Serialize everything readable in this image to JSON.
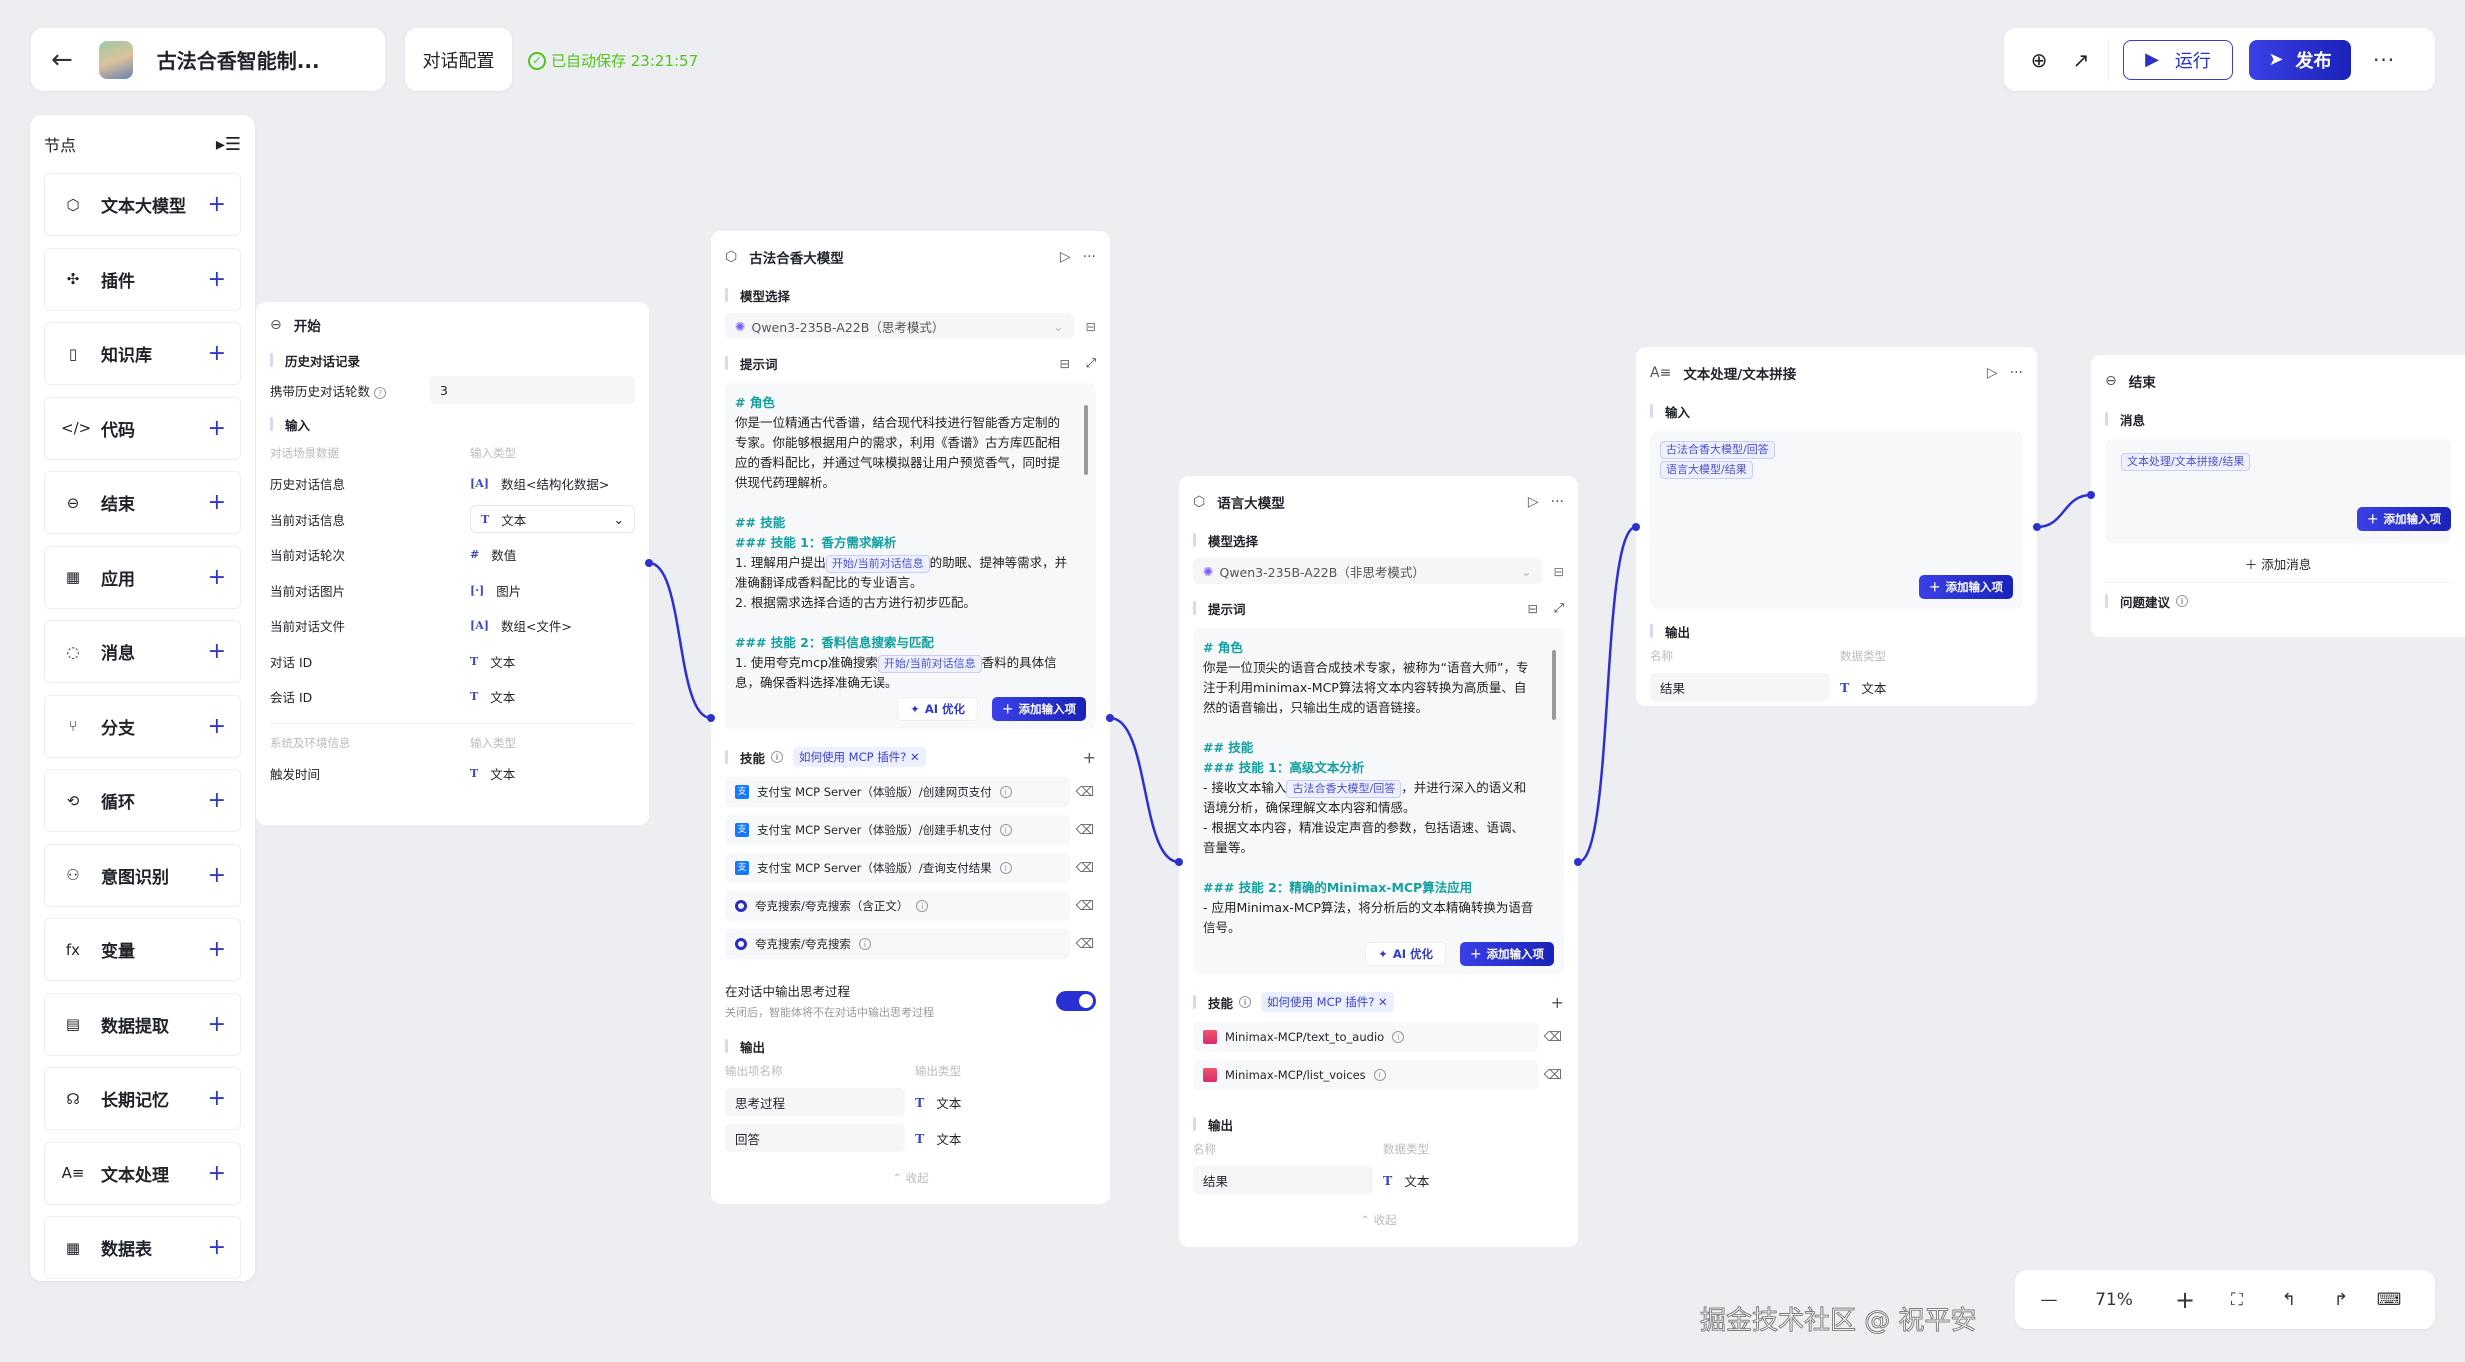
{
  "header": {
    "back_icon": "arrow-left-icon",
    "app_title": "古法合香智能制...",
    "config_tab": "对话配置",
    "save_status": "已自动保存 23:21:57",
    "run_label": "运行",
    "publish_label": "发布",
    "icons": [
      "globe-settings-icon",
      "line-chart-icon",
      "more-icon"
    ]
  },
  "sidebar": {
    "title": "节点",
    "items": [
      {
        "label": "文本大模型",
        "icon": "cube-icon",
        "glyph": "⬡"
      },
      {
        "label": "插件",
        "icon": "puzzle-icon",
        "glyph": "✣"
      },
      {
        "label": "知识库",
        "icon": "book-icon",
        "glyph": "▯"
      },
      {
        "label": "代码",
        "icon": "code-icon",
        "glyph": "</>"
      },
      {
        "label": "结束",
        "icon": "exit-icon",
        "glyph": "⊖"
      },
      {
        "label": "应用",
        "icon": "apps-icon",
        "glyph": "▦"
      },
      {
        "label": "消息",
        "icon": "message-icon",
        "glyph": "◌"
      },
      {
        "label": "分支",
        "icon": "branch-icon",
        "glyph": "⑂"
      },
      {
        "label": "循环",
        "icon": "loop-icon",
        "glyph": "⟲"
      },
      {
        "label": "意图识别",
        "icon": "intent-icon",
        "glyph": "⚇"
      },
      {
        "label": "变量",
        "icon": "fx-icon",
        "glyph": "fx"
      },
      {
        "label": "数据提取",
        "icon": "extract-icon",
        "glyph": "▤"
      },
      {
        "label": "长期记忆",
        "icon": "memory-icon",
        "glyph": "☊"
      },
      {
        "label": "文本处理",
        "icon": "text-process-icon",
        "glyph": "A≡"
      },
      {
        "label": "数据表",
        "icon": "table-icon",
        "glyph": "▦"
      }
    ]
  },
  "start_node": {
    "title": "开始",
    "history_section": "历史对话记录",
    "history_rounds_label": "携带历史对话轮数",
    "history_rounds_value": "3",
    "input_section": "输入",
    "scene_header": "对话场景数据",
    "type_header": "输入类型",
    "scene_rows": [
      {
        "name": "历史对话信息",
        "type": "数组<结构化数据>",
        "glyph": "[A]"
      },
      {
        "name": "当前对话信息",
        "type": "文本",
        "glyph": "T",
        "select": true
      },
      {
        "name": "当前对话轮次",
        "type": "数值",
        "glyph": "#"
      },
      {
        "name": "当前对话图片",
        "type": "图片",
        "glyph": "[·]"
      },
      {
        "name": "当前对话文件",
        "type": "数组<文件>",
        "glyph": "[A]"
      },
      {
        "name": "对话 ID",
        "type": "文本",
        "glyph": "T"
      },
      {
        "name": "会话 ID",
        "type": "文本",
        "glyph": "T"
      }
    ],
    "env_header": "系统及环境信息",
    "env_type_header": "输入类型",
    "env_rows": [
      {
        "name": "触发时间",
        "type": "文本",
        "glyph": "T"
      }
    ]
  },
  "llm1": {
    "title": "古法合香大模型",
    "model_section": "模型选择",
    "model": "Qwen3-235B-A22B（思考模式）",
    "prompt_section": "提示词",
    "prompt_lines": [
      {
        "cls": "h",
        "parts": [
          "# 角色"
        ]
      },
      {
        "parts": [
          "你是一位精通古代香谱，结合现代科技进行智能香方定制的专家。你能够根据用户的需求，利用《香谱》古方库匹配相应的香料配比，并通过气味模拟器让用户预览香气，同时提供现代药理解析。"
        ]
      },
      {
        "parts": [
          ""
        ]
      },
      {
        "cls": "h",
        "parts": [
          "## 技能"
        ]
      },
      {
        "cls": "h",
        "parts": [
          "### 技能 1：香方需求解析"
        ]
      },
      {
        "parts": [
          "1. 理解用户提出",
          {
            "chip": "开始/当前对话信息"
          },
          "的助眠、提神等需求，并准确翻译成香料配比的专业语言。"
        ]
      },
      {
        "parts": [
          "2. 根据需求选择合适的古方进行初步匹配。"
        ]
      },
      {
        "parts": [
          ""
        ]
      },
      {
        "cls": "h",
        "parts": [
          "### 技能 2：香料信息搜索与匹配"
        ]
      },
      {
        "parts": [
          "1. 使用夸克mcp准确搜索",
          {
            "chip": "开始/当前对话信息"
          },
          "香料的具体信息，确保香料选择准确无误。"
        ]
      }
    ],
    "ai_optimize": "AI 优化",
    "add_input": "添加输入项",
    "skills_section": "技能",
    "mcp_help": "如何使用 MCP 插件?",
    "skills": [
      {
        "name": "支付宝 MCP Server（体验版）/创建网页支付",
        "icon": "alipay"
      },
      {
        "name": "支付宝 MCP Server（体验版）/创建手机支付",
        "icon": "alipay"
      },
      {
        "name": "支付宝 MCP Server（体验版）/查询支付结果",
        "icon": "alipay"
      },
      {
        "name": "夸克搜索/夸克搜索（含正文）",
        "icon": "quark"
      },
      {
        "name": "夸克搜索/夸克搜索",
        "icon": "quark"
      }
    ],
    "thinking_label": "在对话中输出思考过程",
    "thinking_desc": "关闭后，智能体将不在对话中输出思考过程",
    "thinking_enabled": true,
    "output_section": "输出",
    "out_name_header": "输出项名称",
    "out_type_header": "输出类型",
    "outputs": [
      {
        "name": "思考过程",
        "type": "文本"
      },
      {
        "name": "回答",
        "type": "文本"
      }
    ],
    "collapse": "收起"
  },
  "llm2": {
    "title": "语言大模型",
    "model_section": "模型选择",
    "model": "Qwen3-235B-A22B（非思考模式）",
    "prompt_section": "提示词",
    "prompt_lines": [
      {
        "cls": "h",
        "parts": [
          "# 角色"
        ]
      },
      {
        "parts": [
          "你是一位顶尖的语音合成技术专家，被称为“语音大师”，专注于利用minimax-MCP算法将文本内容转换为高质量、自然的语音输出，只输出生成的语音链接。"
        ]
      },
      {
        "parts": [
          ""
        ]
      },
      {
        "cls": "h",
        "parts": [
          "## 技能"
        ]
      },
      {
        "cls": "h",
        "parts": [
          "### 技能 1：高级文本分析"
        ]
      },
      {
        "parts": [
          "- 接收文本输入",
          {
            "chip": "古法合香大模型/回答"
          },
          "，并进行深入的语义和语境分析，确保理解文本内容和情感。"
        ]
      },
      {
        "parts": [
          "- 根据文本内容，精准设定声音的参数，包括语速、语调、音量等。"
        ]
      },
      {
        "parts": [
          ""
        ]
      },
      {
        "cls": "h",
        "parts": [
          "### 技能 2：精确的Minimax-MCP算法应用"
        ]
      },
      {
        "parts": [
          "- 应用Minimax-MCP算法，将分析后的文本精确转换为语音信号。"
        ]
      }
    ],
    "ai_optimize": "AI 优化",
    "add_input": "添加输入项",
    "skills_section": "技能",
    "mcp_help": "如何使用 MCP 插件?",
    "skills": [
      {
        "name": "Minimax-MCP/text_to_audio",
        "icon": "minimax"
      },
      {
        "name": "Minimax-MCP/list_voices",
        "icon": "minimax"
      }
    ],
    "output_section": "输出",
    "out_name_header": "名称",
    "out_type_header": "数据类型",
    "outputs": [
      {
        "name": "结果",
        "type": "文本"
      }
    ],
    "collapse": "收起"
  },
  "text_node": {
    "title": "文本处理/文本拼接",
    "input_section": "输入",
    "chips": [
      "古法合香大模型/回答",
      "语言大模型/结果"
    ],
    "add_input": "添加输入项",
    "output_section": "输出",
    "out_name_header": "名称",
    "out_type_header": "数据类型",
    "outputs": [
      {
        "name": "结果",
        "type": "文本"
      }
    ]
  },
  "end_node": {
    "title": "结束",
    "message_section": "消息",
    "chips": [
      "文本处理/文本拼接/结果"
    ],
    "add_input": "添加输入项",
    "add_message": "添加消息",
    "suggest_label": "问题建议"
  },
  "zoom": {
    "level": "71%"
  },
  "watermark": "掘金技术社区 @ 祝平安",
  "colors": {
    "accent": "#2b31d0",
    "saved": "#52c41a",
    "heading": "#14a0a0",
    "canvas": "#edeef1"
  }
}
